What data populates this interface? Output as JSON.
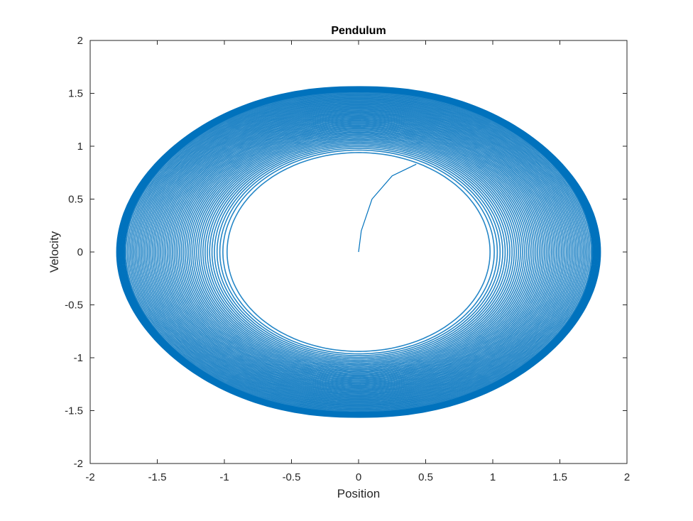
{
  "chart_data": {
    "type": "line",
    "title": "Pendulum",
    "xlabel": "Position",
    "ylabel": "Velocity",
    "xlim": [
      -2,
      2
    ],
    "ylim": [
      -2,
      2
    ],
    "xticks": [
      -2,
      -1.5,
      -1,
      -0.5,
      0,
      0.5,
      1,
      1.5,
      2
    ],
    "yticks": [
      -2,
      -1.5,
      -1,
      -0.5,
      0,
      0.5,
      1,
      1.5,
      2
    ],
    "xtick_labels": [
      "-2",
      "-1.5",
      "-1",
      "-0.5",
      "0",
      "0.5",
      "1",
      "1.5",
      "2"
    ],
    "ytick_labels": [
      "-2",
      "-1.5",
      "-1",
      "-0.5",
      "0",
      "0.5",
      "1",
      "1.5",
      "2"
    ],
    "grid": false,
    "line_color": "#0072BD",
    "series": [
      {
        "description_points": {
          "start": [
            0,
            0
          ],
          "initial_arc": [
            [
              0,
              0
            ],
            [
              0.02,
              0.2
            ],
            [
              0.1,
              0.5
            ],
            [
              0.25,
              0.72
            ],
            [
              0.43,
              0.83
            ]
          ],
          "inner_orbit": {
            "x_amplitude": 0.98,
            "v_amplitude": 0.94
          },
          "outer_orbit": {
            "x_amplitude": 1.8,
            "v_amplitude": 1.56
          }
        }
      }
    ]
  }
}
